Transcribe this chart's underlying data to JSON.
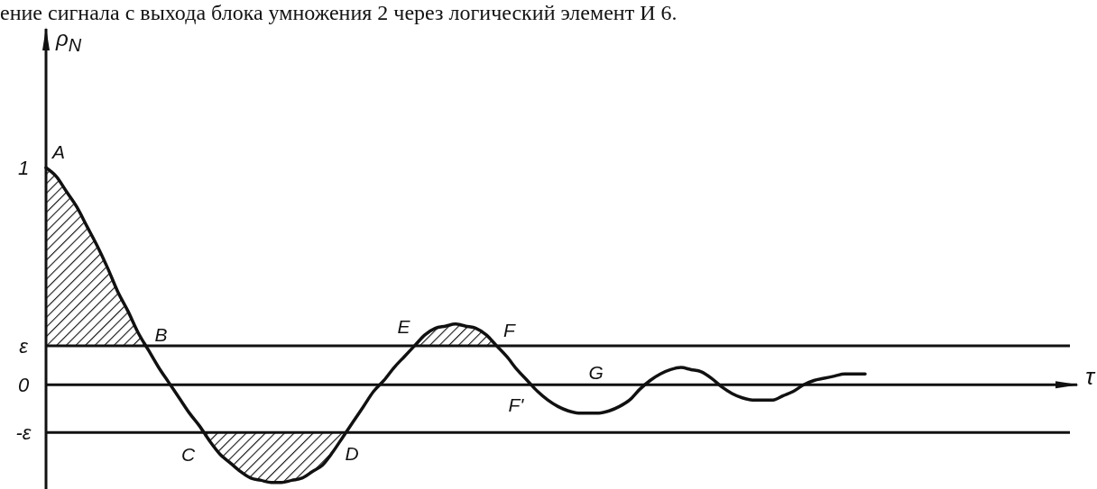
{
  "chart_data": {
    "type": "line",
    "annotations": [
      "ение сигнала с выхода блока умножения 2 через логический элемент И 6."
    ],
    "xlabel": "τ",
    "ylabel": "ρ$_{N}$",
    "color": "#111111",
    "categories": [
      null,
      null,
      null,
      null,
      null,
      null,
      null,
      null,
      null,
      null,
      null,
      null,
      null,
      null,
      null,
      null,
      null,
      null,
      null,
      null,
      null,
      null,
      null,
      null,
      null,
      null,
      null,
      null,
      null,
      null,
      null,
      null,
      null,
      null,
      null,
      null,
      null,
      null,
      null,
      null,
      null,
      null,
      null,
      null,
      null,
      null,
      null,
      null,
      null,
      null,
      null,
      null,
      null,
      null,
      null,
      null,
      null,
      null,
      null,
      null,
      null,
      null,
      null,
      null,
      null,
      null,
      null,
      null,
      null,
      null,
      null,
      null,
      null,
      null,
      null,
      null,
      null,
      null,
      null,
      null,
      null,
      null,
      null,
      null,
      null,
      null,
      null,
      null,
      null,
      null,
      null,
      null,
      null,
      null,
      null,
      null,
      null,
      null,
      null,
      null,
      null
    ],
    "values": [
      1.0,
      0.96,
      0.89,
      0.82,
      0.73,
      0.64,
      0.54,
      0.43,
      0.34,
      0.24,
      0.16,
      0.08,
      0.01,
      -0.06,
      -0.13,
      -0.19,
      -0.26,
      -0.32,
      -0.36,
      -0.4,
      -0.43,
      -0.44,
      -0.45,
      -0.45,
      -0.44,
      -0.43,
      -0.4,
      -0.37,
      -0.31,
      -0.24,
      -0.17,
      -0.1,
      -0.03,
      0.02,
      0.08,
      0.13,
      0.18,
      0.23,
      0.26,
      0.27,
      0.28,
      0.27,
      0.26,
      0.23,
      0.18,
      0.13,
      0.07,
      0.02,
      -0.03,
      -0.07,
      -0.1,
      -0.12,
      -0.13,
      -0.13,
      -0.13,
      -0.12,
      -0.1,
      -0.07,
      -0.02,
      0.02,
      0.05,
      0.07,
      0.08,
      0.07,
      0.06,
      0.03,
      -0.01,
      -0.04,
      -0.06,
      -0.07,
      -0.07,
      -0.07,
      -0.05,
      -0.03,
      0.0,
      0.02,
      0.03,
      0.04,
      0.05,
      0.05,
      0.05,
      null,
      null,
      null,
      null,
      null,
      null,
      null,
      null,
      null,
      null,
      null,
      null,
      null,
      null,
      null,
      null,
      null,
      null,
      null,
      null
    ],
    "lower": [
      0.18,
      0.18,
      0.18,
      0.18,
      0.18,
      0.18,
      0.18,
      0.18,
      0.18,
      0.18,
      0.18,
      null,
      null,
      null,
      null,
      -0.22,
      -0.26,
      -0.32,
      -0.36,
      -0.4,
      -0.43,
      -0.44,
      -0.45,
      -0.45,
      -0.44,
      -0.43,
      -0.4,
      -0.37,
      -0.31,
      -0.24,
      -0.22,
      null,
      null,
      null,
      null,
      null,
      0.18,
      0.18,
      0.18,
      0.18,
      0.18,
      0.18,
      0.18,
      0.18,
      0.18,
      null,
      null,
      null,
      null,
      null,
      null,
      null,
      null,
      null,
      null,
      null,
      null,
      null,
      null,
      null,
      null,
      null,
      null,
      null,
      null,
      null,
      null,
      null,
      null,
      null,
      null,
      null,
      null,
      null,
      null,
      null,
      null,
      null,
      null,
      null,
      null,
      null,
      null,
      null,
      null,
      null,
      null,
      null,
      null,
      null,
      null,
      null,
      null,
      null,
      null,
      null,
      null,
      null,
      null,
      null,
      null
    ],
    "upper": [
      1.0,
      0.96,
      0.89,
      0.82,
      0.73,
      0.64,
      0.54,
      0.43,
      0.34,
      0.24,
      0.18,
      null,
      null,
      null,
      null,
      -0.22,
      -0.22,
      -0.22,
      -0.22,
      -0.22,
      -0.22,
      -0.22,
      -0.22,
      -0.22,
      -0.22,
      -0.22,
      -0.22,
      -0.22,
      -0.22,
      -0.22,
      -0.22,
      null,
      null,
      null,
      null,
      null,
      0.18,
      0.23,
      0.26,
      0.27,
      0.28,
      0.27,
      0.26,
      0.23,
      0.18,
      null,
      null,
      null,
      null,
      null,
      null,
      null,
      null,
      null,
      null,
      null,
      null,
      null,
      null,
      null,
      null,
      null,
      null,
      null,
      null,
      null,
      null,
      null,
      null,
      null,
      null,
      null,
      null,
      null,
      null,
      null,
      null,
      null,
      null,
      null,
      null,
      null,
      null,
      null,
      null,
      null,
      null,
      null,
      null,
      null,
      null,
      null,
      null,
      null,
      null,
      null,
      null,
      null,
      null,
      null,
      null
    ],
    "value_labels": [
      "A",
      null,
      null,
      null,
      null,
      null,
      null,
      null,
      null,
      null,
      "B",
      null,
      null,
      null,
      null,
      null,
      "C",
      null,
      null,
      null,
      null,
      null,
      null,
      null,
      null,
      null,
      null,
      null,
      null,
      "D",
      null,
      null,
      null,
      null,
      null,
      null,
      "E",
      null,
      null,
      null,
      null,
      null,
      null,
      null,
      "F",
      null,
      null,
      null,
      "F'",
      null,
      null,
      null,
      null,
      "G",
      null,
      null,
      null,
      null,
      null,
      null,
      null,
      null,
      null,
      null,
      null,
      null,
      null,
      null,
      null,
      null,
      null,
      null,
      null,
      null,
      null,
      null,
      null,
      null,
      null,
      null,
      null,
      null,
      null,
      null,
      null,
      null,
      null,
      null,
      null,
      null,
      null,
      null,
      null,
      null,
      null,
      null,
      null,
      null,
      null,
      null,
      null
    ],
    "ylim": [
      -0.48,
      1.64
    ],
    "yticks": [
      0,
      1
    ],
    "ref_lines": [
      {
        "axis": "y",
        "value": 0.18,
        "label": "ε",
        "color": "#111111"
      },
      {
        "axis": "y",
        "value": -0.22,
        "label": "-ε",
        "color": "#111111"
      }
    ]
  }
}
